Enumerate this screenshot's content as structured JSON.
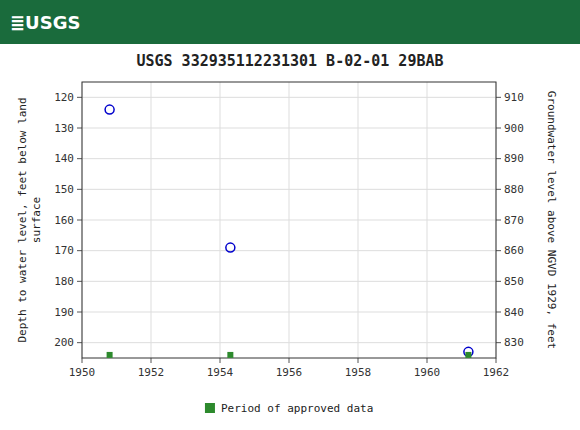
{
  "chart_data": {
    "type": "scatter",
    "title": "USGS 332935112231301 B-02-01 29BAB",
    "annotations": [
      "≣USGS"
    ],
    "y_label": "Depth to water level, feet below land\nsurface",
    "y2_label": "Groundwater level above NGVD 1929, feet",
    "xlim": [
      1950,
      1962
    ],
    "xticks": [
      1950,
      1952,
      1954,
      1956,
      1958,
      1960,
      1962
    ],
    "ylim": [
      205,
      115
    ],
    "yticks": [
      120,
      130,
      140,
      150,
      160,
      170,
      180,
      190,
      200
    ],
    "y2lim": [
      825,
      915
    ],
    "y2ticks": [
      830,
      840,
      850,
      860,
      870,
      880,
      890,
      900,
      910
    ],
    "grid": true,
    "legend": "bottom",
    "series": [
      {
        "x": [
          1950.8,
          1954.3,
          1961.2
        ],
        "values": [
          124,
          169,
          203
        ],
        "color": "#0000cc",
        "marker": "open-circle"
      },
      {
        "name": "Period of approved data",
        "x": [
          1950.8,
          1954.3,
          1961.2
        ],
        "values": [
          204,
          204,
          204
        ],
        "color": "#2d8a2d",
        "marker": "square"
      }
    ]
  }
}
